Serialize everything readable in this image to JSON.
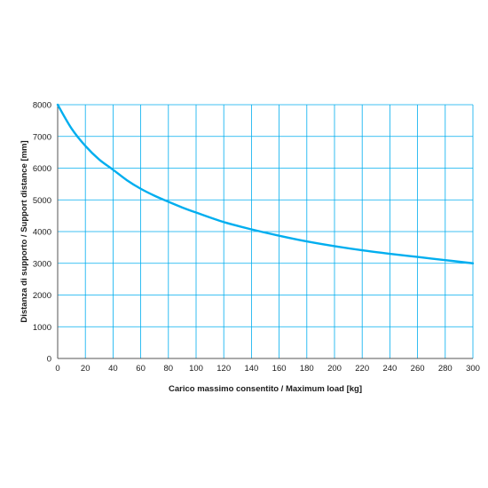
{
  "chart_data": {
    "type": "line",
    "xlabel": "Carico massimo consentito / Maximum load [kg]",
    "ylabel": "Distanza di supporto / Support distance [mm]",
    "xlim": [
      0,
      300
    ],
    "ylim": [
      0,
      8000
    ],
    "xticks": [
      0,
      20,
      40,
      60,
      80,
      100,
      120,
      140,
      160,
      180,
      200,
      220,
      240,
      260,
      280,
      300
    ],
    "yticks": [
      0,
      1000,
      2000,
      3000,
      4000,
      5000,
      6000,
      7000,
      8000
    ],
    "grid": true,
    "series": [
      {
        "color": "#00aeef",
        "x": [
          0,
          10,
          20,
          30,
          40,
          50,
          60,
          70,
          80,
          90,
          100,
          120,
          140,
          160,
          180,
          200,
          220,
          240,
          260,
          280,
          300
        ],
        "y": [
          8000,
          7250,
          6700,
          6270,
          5950,
          5620,
          5350,
          5130,
          4940,
          4760,
          4600,
          4300,
          4070,
          3870,
          3690,
          3540,
          3410,
          3300,
          3200,
          3100,
          3000
        ]
      }
    ]
  }
}
